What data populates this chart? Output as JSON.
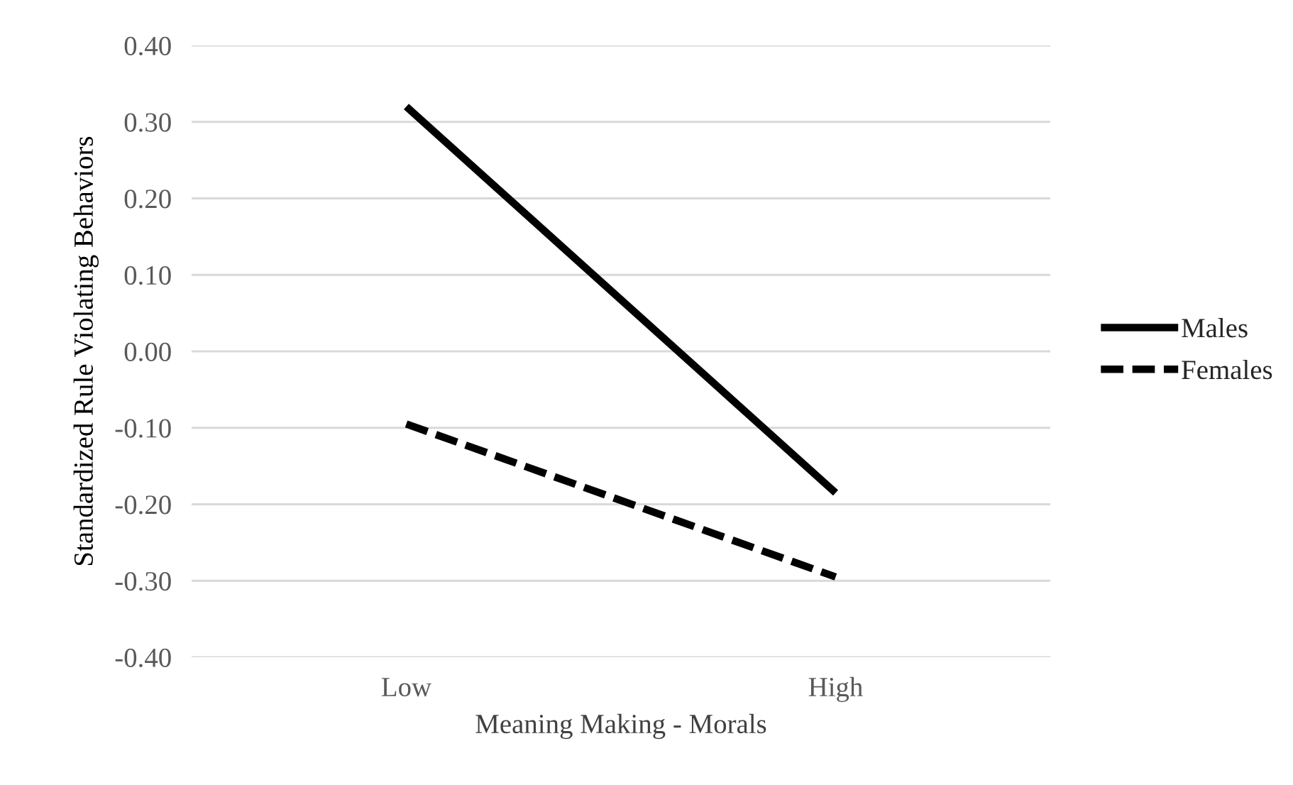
{
  "chart_data": {
    "type": "line",
    "xlabel": "Meaning Making - Morals",
    "ylabel": "Standardized Rule Violating Behaviors",
    "categories": [
      "Low",
      "High"
    ],
    "series": [
      {
        "name": "Males",
        "color": "#000000",
        "values": [
          0.32,
          -0.185
        ],
        "line_style": "solid"
      },
      {
        "name": "Females",
        "color": "#000000",
        "values": [
          -0.095,
          -0.295
        ],
        "line_style": "dashed"
      }
    ],
    "ylim": [
      -0.4,
      0.4
    ],
    "yticks": [
      {
        "value": -0.4,
        "label": "-0.40"
      },
      {
        "value": -0.3,
        "label": "-0.30"
      },
      {
        "value": -0.2,
        "label": "-0.20"
      },
      {
        "value": -0.1,
        "label": "-0.10"
      },
      {
        "value": 0,
        "label": "0.00"
      },
      {
        "value": 0.1,
        "label": "0.10"
      },
      {
        "value": 0.2,
        "label": "0.20"
      },
      {
        "value": 0.3,
        "label": "0.30"
      },
      {
        "value": 0.4,
        "label": "0.40"
      }
    ],
    "grid": "y",
    "legend": "right",
    "marker": "none"
  }
}
